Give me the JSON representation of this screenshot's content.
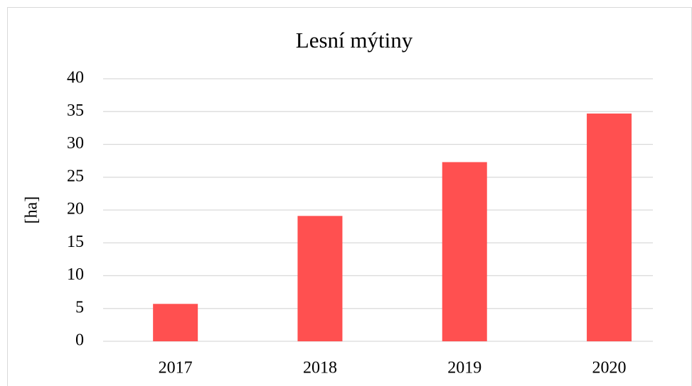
{
  "chart_data": {
    "type": "bar",
    "title": "Lesní mýtiny",
    "y_label": "[ha]",
    "categories": [
      "2017",
      "2018",
      "2019",
      "2020"
    ],
    "values": [
      5.7,
      19.1,
      27.3,
      34.7
    ],
    "color": "#ff5050",
    "ylim": [
      0,
      40
    ],
    "yticks": [
      0,
      5,
      10,
      15,
      20,
      25,
      30,
      35,
      40
    ],
    "grid": true
  }
}
